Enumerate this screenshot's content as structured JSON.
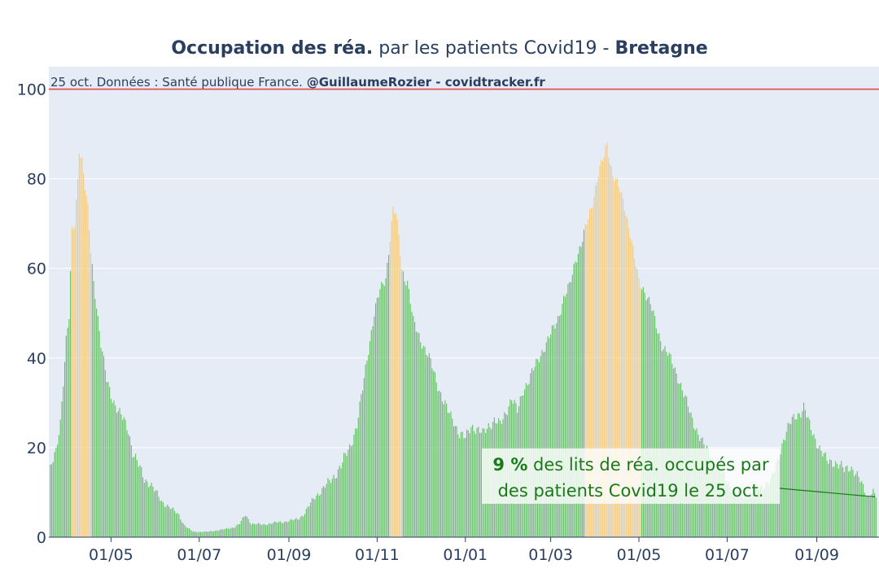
{
  "chart_data": {
    "type": "bar",
    "title_bold_1": "Occupation des réa.",
    "title_regular": " par les patients Covid19 - ",
    "title_bold_2": "Bretagne",
    "source_regular": "25 oct. Données : Santé publique France. ",
    "source_bold": "@GuillaumeRozier - covidtracker.fr",
    "xlabel": "",
    "ylabel": "",
    "ylim": [
      0,
      105
    ],
    "yticks": [
      "0",
      "20",
      "40",
      "60",
      "80",
      "100"
    ],
    "ytick_values": [
      0,
      20,
      40,
      60,
      80,
      100
    ],
    "reference_line": {
      "value": 100,
      "color": "#e8474a"
    },
    "xticks": [
      "01/05",
      "01/07",
      "01/09",
      "01/11",
      "01/01",
      "01/03",
      "01/05",
      "01/07",
      "01/09"
    ],
    "xtick_days": [
      43,
      104,
      166,
      227,
      288,
      347,
      408,
      469,
      531
    ],
    "colors": {
      "normal": "#66bb66",
      "lockdown": "#f5c97a",
      "background": "#e5ecf6",
      "annotation": "#1a7a1a"
    },
    "lockdown_periods": [
      [
        16,
        29
      ],
      [
        236,
        244
      ],
      [
        371,
        409
      ]
    ],
    "series": [
      {
        "keypoints": [
          [
            1,
            15
          ],
          [
            3,
            17
          ],
          [
            5,
            19
          ],
          [
            8,
            26
          ],
          [
            10,
            35
          ],
          [
            12,
            44
          ],
          [
            14,
            49
          ],
          [
            16,
            68
          ],
          [
            18,
            70
          ],
          [
            20,
            80
          ],
          [
            21,
            87
          ],
          [
            23,
            84
          ],
          [
            25,
            78
          ],
          [
            27,
            73
          ],
          [
            29,
            64
          ],
          [
            31,
            57
          ],
          [
            33,
            52
          ],
          [
            36,
            43
          ],
          [
            40,
            35
          ],
          [
            44,
            31
          ],
          [
            48,
            28
          ],
          [
            52,
            26
          ],
          [
            55,
            24
          ],
          [
            58,
            19
          ],
          [
            62,
            16
          ],
          [
            66,
            13
          ],
          [
            70,
            12
          ],
          [
            74,
            10
          ],
          [
            78,
            8
          ],
          [
            82,
            7
          ],
          [
            86,
            6
          ],
          [
            90,
            5
          ],
          [
            93,
            3
          ],
          [
            96,
            2
          ],
          [
            100,
            1.2
          ],
          [
            110,
            1.2
          ],
          [
            122,
            1.8
          ],
          [
            128,
            2.2
          ],
          [
            132,
            3
          ],
          [
            136,
            5
          ],
          [
            140,
            3
          ],
          [
            148,
            2.8
          ],
          [
            156,
            3.2
          ],
          [
            164,
            3.5
          ],
          [
            172,
            4
          ],
          [
            176,
            5
          ],
          [
            180,
            7
          ],
          [
            184,
            9
          ],
          [
            190,
            11
          ],
          [
            196,
            13
          ],
          [
            202,
            16
          ],
          [
            208,
            20
          ],
          [
            213,
            25
          ],
          [
            217,
            33
          ],
          [
            221,
            42
          ],
          [
            225,
            50
          ],
          [
            229,
            55
          ],
          [
            233,
            58
          ],
          [
            236,
            67
          ],
          [
            238,
            73
          ],
          [
            240,
            72
          ],
          [
            242,
            67
          ],
          [
            244,
            60
          ],
          [
            246,
            58
          ],
          [
            248,
            57
          ],
          [
            252,
            48
          ],
          [
            256,
            45
          ],
          [
            260,
            42
          ],
          [
            264,
            39
          ],
          [
            268,
            35
          ],
          [
            272,
            31
          ],
          [
            276,
            28
          ],
          [
            280,
            26
          ],
          [
            284,
            23
          ],
          [
            288,
            22
          ],
          [
            292,
            25
          ],
          [
            296,
            24
          ],
          [
            300,
            23
          ],
          [
            304,
            25
          ],
          [
            308,
            26
          ],
          [
            312,
            25
          ],
          [
            316,
            28
          ],
          [
            320,
            31
          ],
          [
            324,
            28
          ],
          [
            328,
            33
          ],
          [
            332,
            35
          ],
          [
            336,
            38
          ],
          [
            340,
            41
          ],
          [
            344,
            43
          ],
          [
            348,
            46
          ],
          [
            352,
            49
          ],
          [
            356,
            53
          ],
          [
            360,
            56
          ],
          [
            364,
            62
          ],
          [
            368,
            65
          ],
          [
            372,
            70
          ],
          [
            376,
            75
          ],
          [
            380,
            81
          ],
          [
            384,
            85
          ],
          [
            386,
            88
          ],
          [
            388,
            84
          ],
          [
            390,
            81
          ],
          [
            394,
            78
          ],
          [
            398,
            74
          ],
          [
            402,
            68
          ],
          [
            405,
            62
          ],
          [
            408,
            57
          ],
          [
            412,
            55
          ],
          [
            416,
            52
          ],
          [
            420,
            47
          ],
          [
            424,
            43
          ],
          [
            428,
            41
          ],
          [
            432,
            38
          ],
          [
            436,
            35
          ],
          [
            440,
            31
          ],
          [
            444,
            27
          ],
          [
            448,
            24
          ],
          [
            452,
            21
          ],
          [
            456,
            19
          ],
          [
            460,
            17
          ],
          [
            464,
            15
          ],
          [
            468,
            13
          ],
          [
            472,
            11
          ],
          [
            476,
            10
          ],
          [
            480,
            9
          ],
          [
            484,
            9.5
          ],
          [
            488,
            10
          ],
          [
            492,
            11
          ],
          [
            496,
            12
          ],
          [
            500,
            13
          ],
          [
            504,
            17
          ],
          [
            508,
            22
          ],
          [
            512,
            25
          ],
          [
            516,
            27
          ],
          [
            520,
            28
          ],
          [
            522,
            29
          ],
          [
            526,
            25
          ],
          [
            530,
            22
          ],
          [
            534,
            19
          ],
          [
            538,
            17
          ],
          [
            542,
            17
          ],
          [
            546,
            16
          ],
          [
            550,
            15
          ],
          [
            554,
            16
          ],
          [
            558,
            14
          ],
          [
            562,
            12
          ],
          [
            566,
            9
          ],
          [
            570,
            10
          ],
          [
            572,
            9
          ]
        ]
      }
    ],
    "annotation": {
      "value_bold": "9  %",
      "line1_rest": " des lits de réa. occupés par",
      "line2": "des patients Covid19 le 25 oct."
    }
  }
}
